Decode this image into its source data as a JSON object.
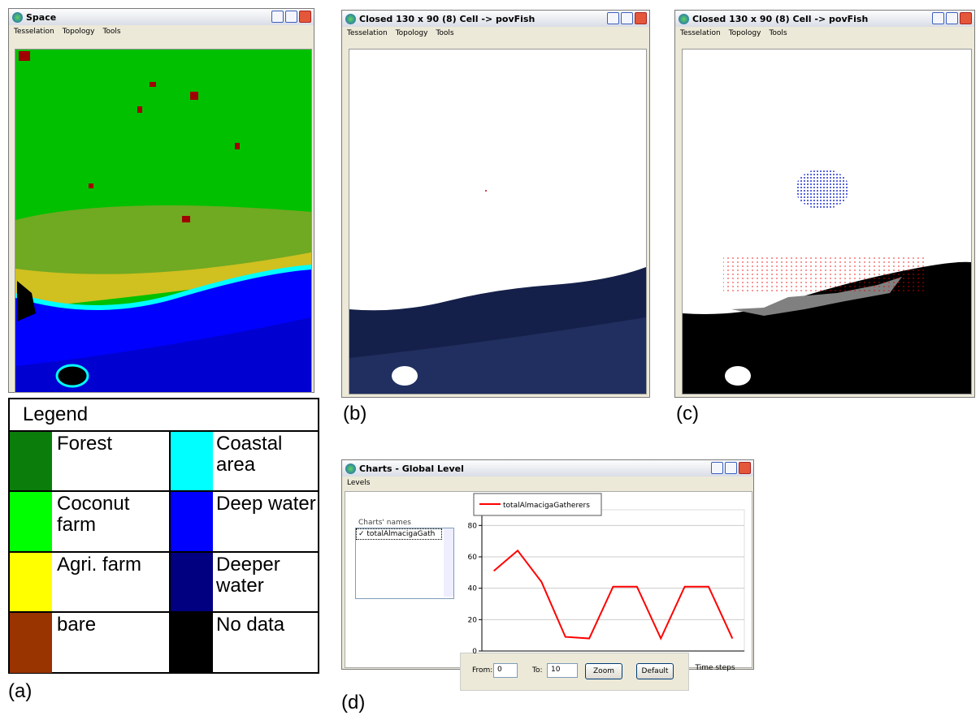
{
  "windows": {
    "space": {
      "title": "Space",
      "menu": [
        "Tesselation",
        "Topology",
        "Tools"
      ]
    },
    "fish_b": {
      "title": "Closed 130 x 90 (8)  Cell -> povFish",
      "menu": [
        "Tesselation",
        "Topology",
        "Tools"
      ]
    },
    "fish_c": {
      "title": "Closed 130 x 90 (8)  Cell -> povFish",
      "menu": [
        "Tesselation",
        "Topology",
        "Tools"
      ]
    },
    "charts": {
      "title": "Charts - Global Level",
      "menu": [
        "Levels"
      ],
      "list_label": "Charts' names",
      "list_items": [
        "totalAlmacigaGath"
      ],
      "from_label": "From:",
      "from_value": "0",
      "to_label": "To:",
      "to_value": "10",
      "zoom_button": "Zoom",
      "default_button": "Default"
    }
  },
  "legend": {
    "title": "Legend",
    "items": [
      {
        "label": "Forest",
        "color": "#0b7d0b"
      },
      {
        "label": "Coconut farm",
        "color": "#00ff00"
      },
      {
        "label": "Agri. farm",
        "color": "#ffff00"
      },
      {
        "label": "bare",
        "color": "#993300"
      },
      {
        "label": "Coastal area",
        "color": "#00ffff"
      },
      {
        "label": "Deep water",
        "color": "#0000ff"
      },
      {
        "label": "Deeper water",
        "color": "#000080"
      },
      {
        "label": "No data",
        "color": "#000000"
      }
    ]
  },
  "captions": [
    "(a)",
    "(b)",
    "(c)",
    "(d)"
  ],
  "chart_data": {
    "type": "line",
    "xlabel": "Time steps",
    "x": [
      0,
      1,
      2,
      3,
      4,
      5,
      6,
      7,
      8,
      9,
      10
    ],
    "xlim": [
      -0.5,
      10.5
    ],
    "ylim": [
      0,
      90
    ],
    "yticks": [
      0,
      20,
      40,
      60,
      80
    ],
    "grid": true,
    "series": [
      {
        "name": "totalAlmacigaGatherers",
        "color": "#ff0000",
        "values": [
          51,
          64,
          44,
          9,
          8,
          41,
          41,
          8,
          41,
          41,
          8
        ]
      }
    ]
  }
}
